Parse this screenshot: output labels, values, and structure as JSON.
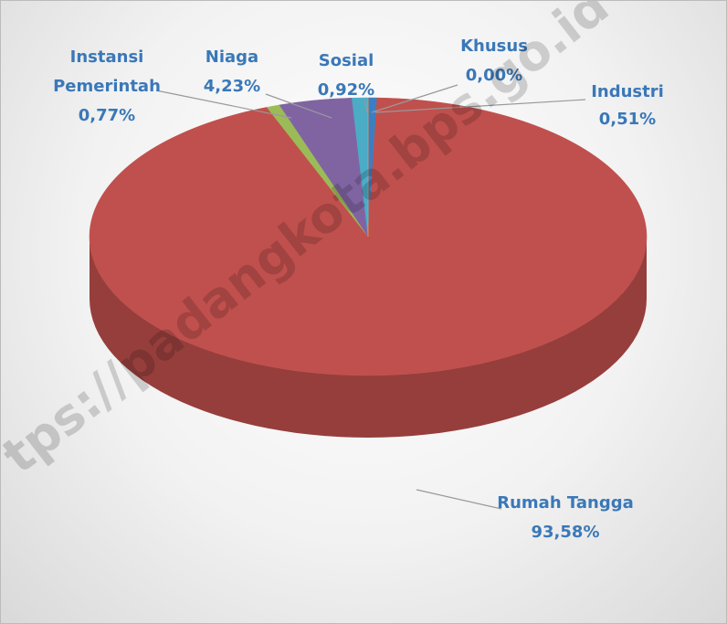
{
  "chart_data": {
    "type": "pie",
    "categories": [
      "Industri",
      "Rumah Tangga",
      "Instansi Pemerintah",
      "Niaga",
      "Sosial",
      "Khusus"
    ],
    "values": [
      0.51,
      93.58,
      0.77,
      4.23,
      0.92,
      0.0
    ],
    "value_labels": [
      "0,51%",
      "93,58%",
      "0,77%",
      "4,23%",
      "0,92%",
      "0,00%"
    ],
    "colors": [
      "#3a7fc4",
      "#c0504d",
      "#9bbb59",
      "#8064a2",
      "#4bacc6",
      "#f79646"
    ],
    "watermark": "tps://padangkota.bps.go.id"
  }
}
